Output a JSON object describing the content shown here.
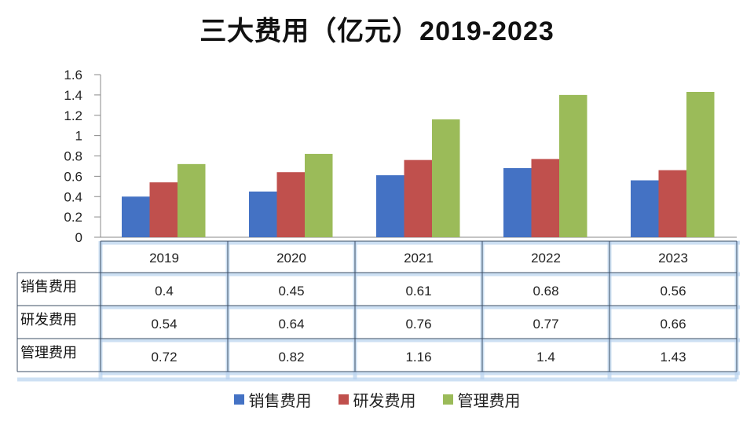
{
  "chart_data": {
    "type": "bar",
    "title": "三大费用（亿元）2019-2023",
    "categories": [
      "2019",
      "2020",
      "2021",
      "2022",
      "2023"
    ],
    "series": [
      {
        "name": "销售费用",
        "color": "#4472C4",
        "values": [
          0.4,
          0.45,
          0.61,
          0.68,
          0.56
        ]
      },
      {
        "name": "研发费用",
        "color": "#C0504D",
        "values": [
          0.54,
          0.64,
          0.76,
          0.77,
          0.66
        ]
      },
      {
        "name": "管理费用",
        "color": "#9BBB59",
        "values": [
          0.72,
          0.82,
          1.16,
          1.4,
          1.43
        ]
      }
    ],
    "yticks": [
      "0",
      "0.2",
      "0.4",
      "0.6",
      "0.8",
      "1",
      "1.2",
      "1.4",
      "1.6"
    ],
    "ylim": [
      0,
      1.6
    ],
    "grid": false,
    "data_table": true,
    "legend": "bottom"
  }
}
